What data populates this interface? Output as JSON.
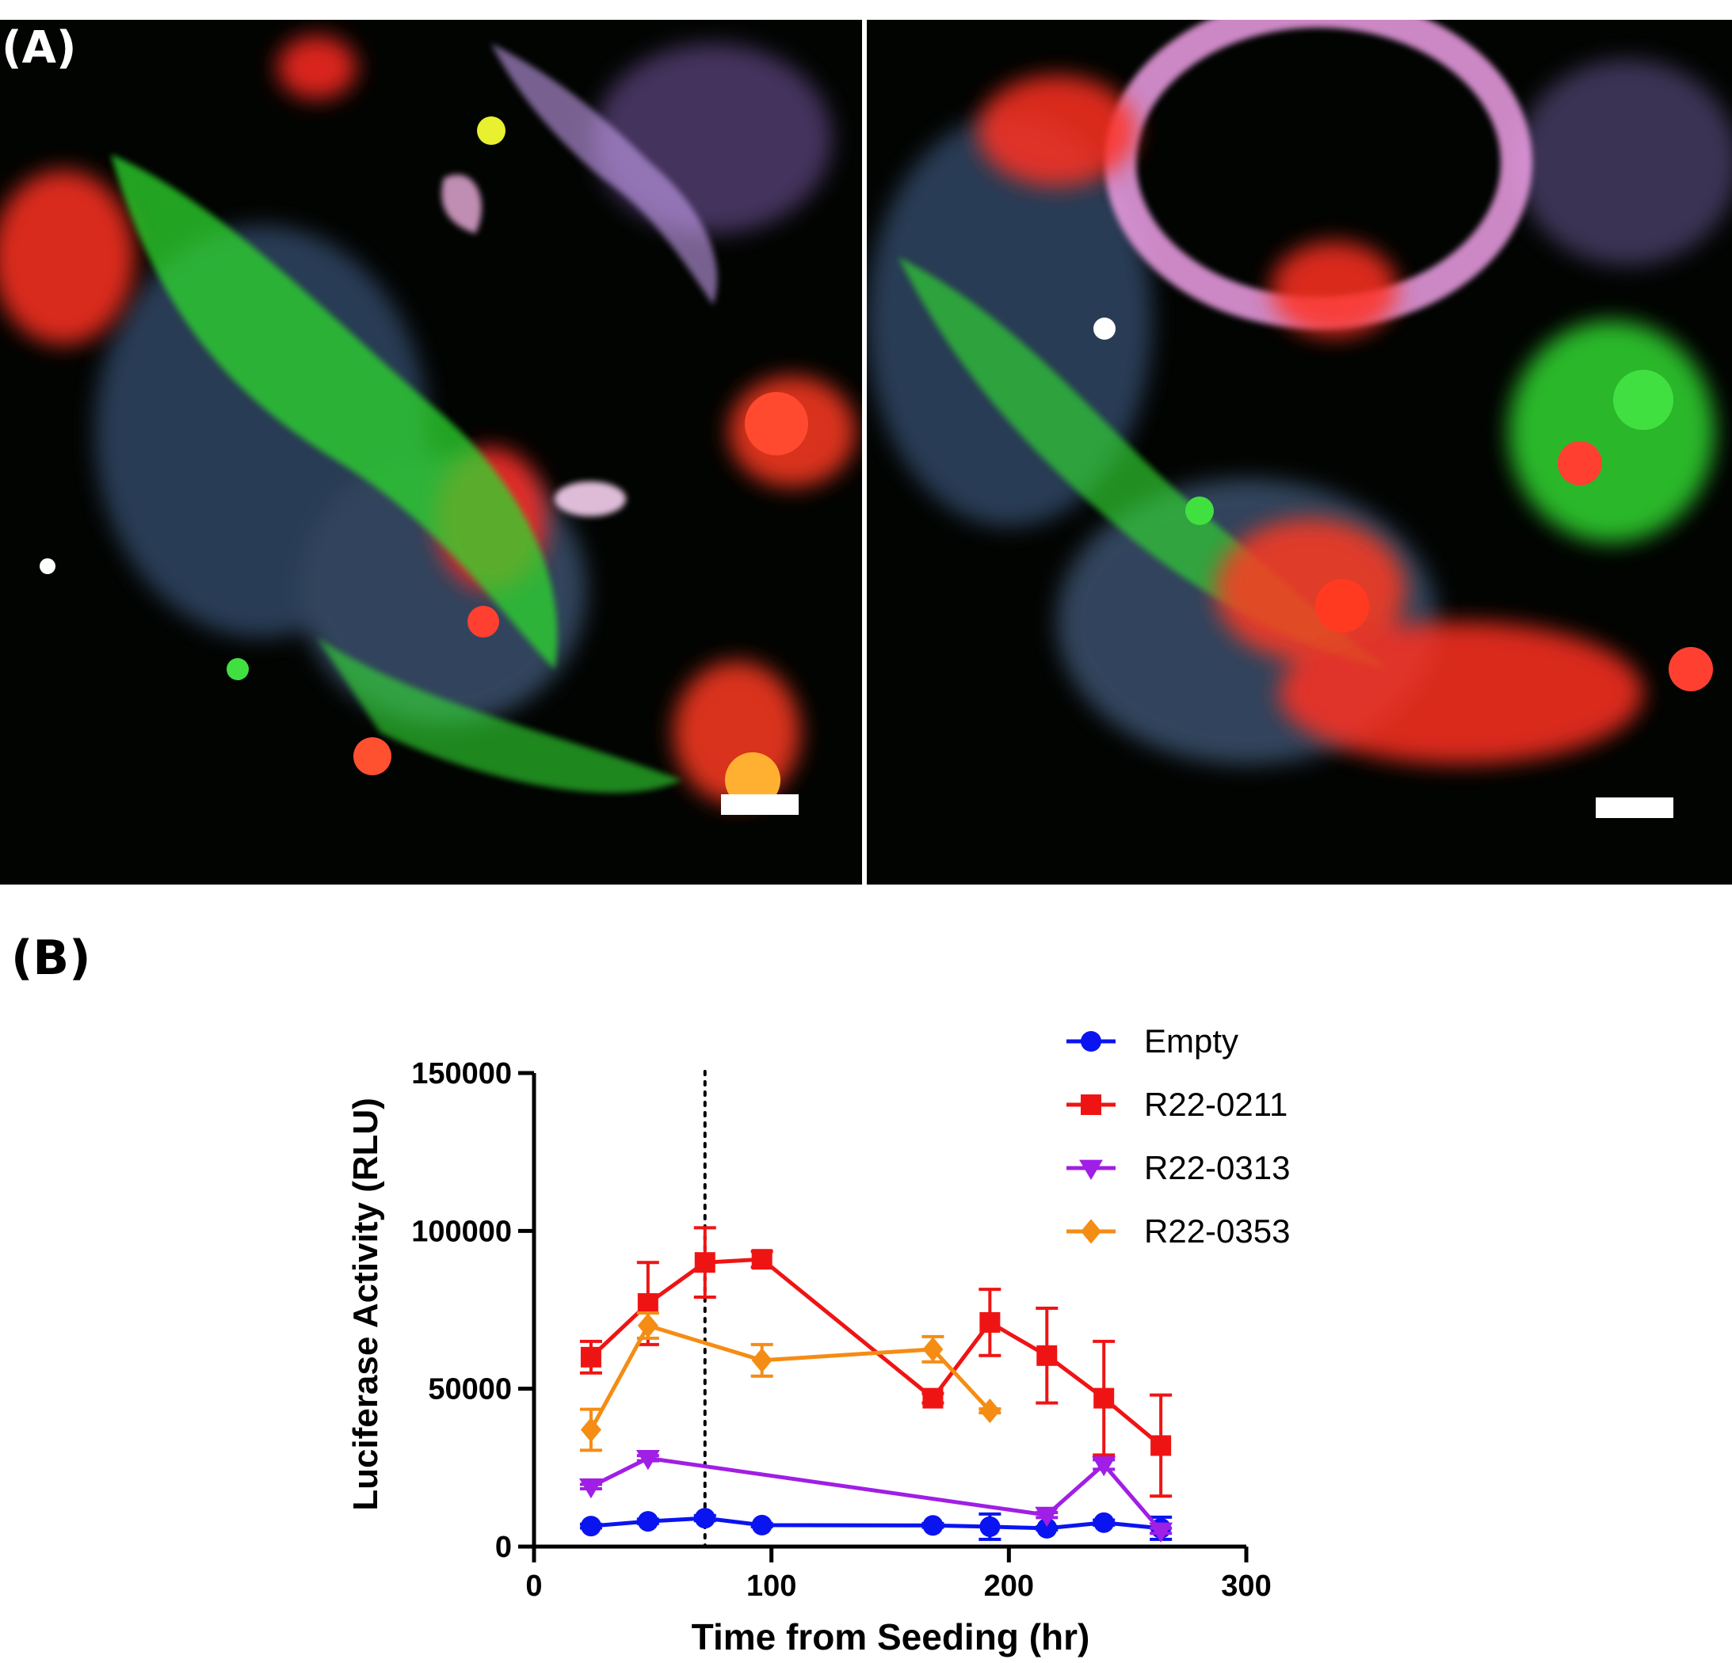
{
  "panels": {
    "a_label": "(A)",
    "b_label": "(B)"
  },
  "micrographs": [
    {
      "scale_bar": true
    },
    {
      "scale_bar": true
    }
  ],
  "chart_data": {
    "type": "line",
    "xlabel": "Time from Seeding (hr)",
    "ylabel": "Luciferase Activity (RLU)",
    "xlim": [
      0,
      300
    ],
    "ylim": [
      0,
      150000
    ],
    "xticks": [
      0,
      100,
      200,
      300
    ],
    "yticks": [
      0,
      50000,
      100000,
      150000
    ],
    "grid": false,
    "legend_position": "top-right",
    "reference_line": {
      "x": 72,
      "style": "dotted"
    },
    "series": [
      {
        "name": "Empty",
        "color": "#0a14f0",
        "marker": "circle",
        "x": [
          24,
          48,
          72,
          96,
          168,
          192,
          216,
          240,
          264
        ],
        "y": [
          6500,
          8000,
          9000,
          6800,
          6700,
          6300,
          5800,
          7600,
          5800
        ],
        "err": [
          600,
          700,
          800,
          500,
          600,
          4000,
          500,
          800,
          3500
        ]
      },
      {
        "name": "R22-0211",
        "color": "#ef1414",
        "marker": "square",
        "x": [
          24,
          48,
          72,
          96,
          168,
          192,
          216,
          240,
          264
        ],
        "y": [
          60000,
          77000,
          90000,
          91000,
          47000,
          71000,
          60500,
          47000,
          32000
        ],
        "err": [
          5000,
          13000,
          11000,
          2500,
          1500,
          10500,
          15000,
          18000,
          16000
        ]
      },
      {
        "name": "R22-0313",
        "color": "#a01ee6",
        "marker": "triangle-down",
        "x": [
          24,
          48,
          216,
          240,
          264
        ],
        "y": [
          19000,
          28000,
          10000,
          26000,
          5000
        ],
        "err": [
          700,
          800,
          800,
          1500,
          800
        ]
      },
      {
        "name": "R22-0353",
        "color": "#f58c14",
        "marker": "diamond",
        "x": [
          24,
          48,
          96,
          168,
          192
        ],
        "y": [
          37000,
          70000,
          59000,
          62500,
          43000
        ],
        "err": [
          6500,
          4000,
          5000,
          4000,
          600
        ]
      }
    ]
  }
}
